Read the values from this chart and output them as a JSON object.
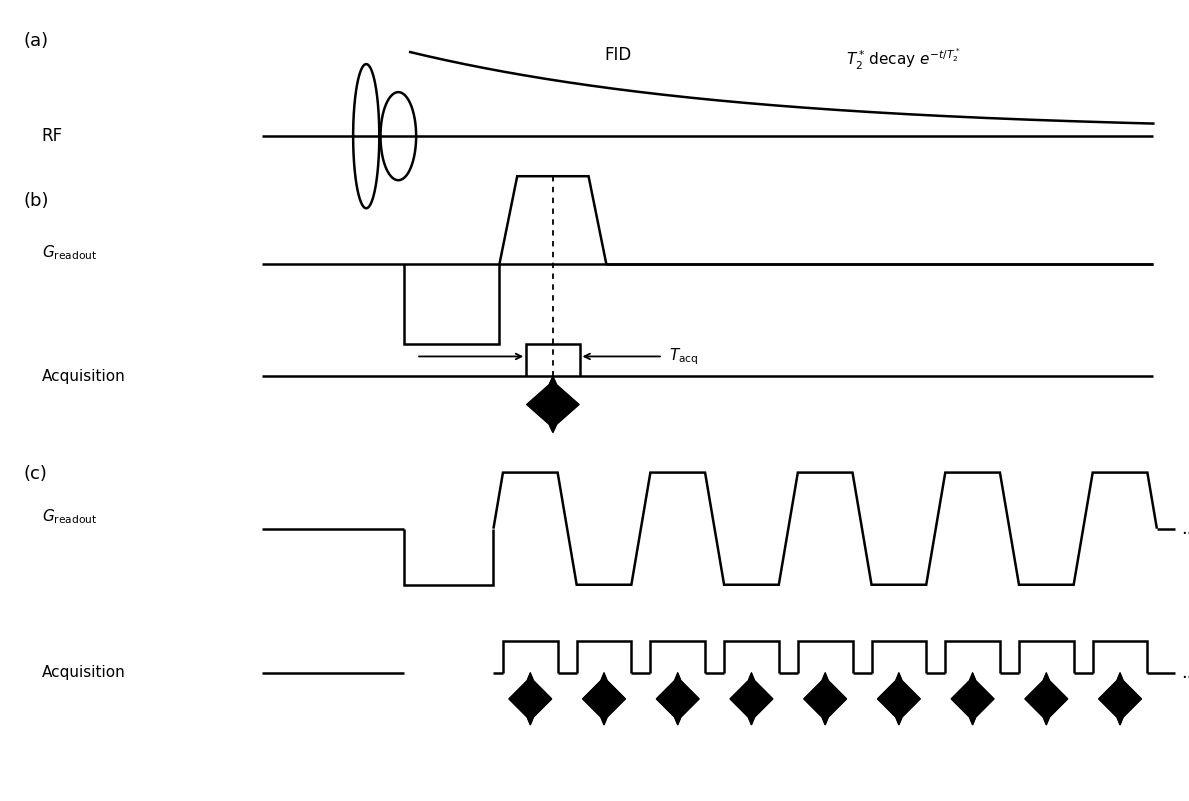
{
  "bg_color": "#ffffff",
  "line_color": "#000000",
  "panel_a_label": "(a)",
  "panel_b_label": "(b)",
  "panel_c_label": "(c)",
  "rf_label": "RF",
  "g_readout_label_b": "$G_\\mathrm{readout}$",
  "acq_label_b": "Acquisition",
  "g_readout_label_c": "$G_\\mathrm{readout}$",
  "acq_label_c": "Acquisition",
  "fid_label": "FID",
  "t2_label": "$T_2^*\\!$ decay $e^{-t/T_2^*}$",
  "tacq_label": "$T_\\mathrm{acq}$",
  "dots_label": "..."
}
